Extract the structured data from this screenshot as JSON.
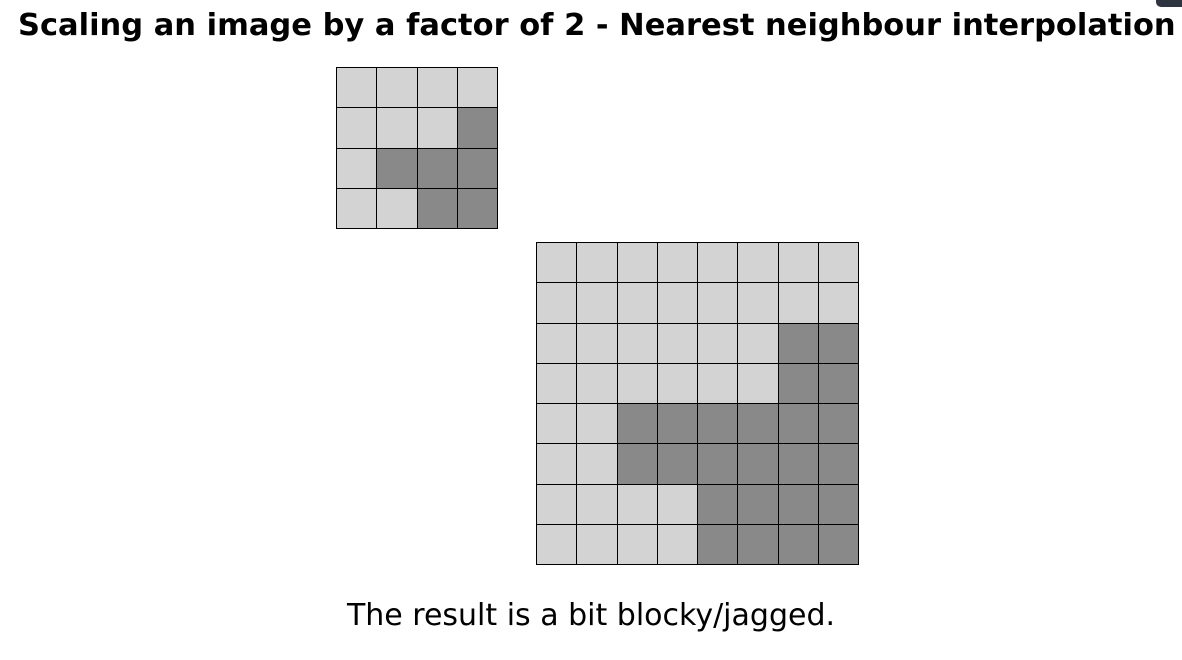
{
  "slide": {
    "title": "Scaling an image by a factor of 2 - Nearest neighbour interpolation",
    "caption": "The result is a bit blocky/jagged."
  },
  "colors": {
    "light_pixel": "#d3d3d3",
    "dark_pixel": "#898989",
    "grid_line": "#000000",
    "corner_tab": "#2e3440"
  },
  "original_image": {
    "rows": 4,
    "cols": 4,
    "pixels": [
      [
        0,
        0,
        0,
        0
      ],
      [
        0,
        0,
        0,
        1
      ],
      [
        0,
        1,
        1,
        1
      ],
      [
        0,
        0,
        1,
        1
      ]
    ]
  },
  "scaled_image": {
    "rows": 8,
    "cols": 8,
    "pixels": [
      [
        0,
        0,
        0,
        0,
        0,
        0,
        0,
        0
      ],
      [
        0,
        0,
        0,
        0,
        0,
        0,
        0,
        0
      ],
      [
        0,
        0,
        0,
        0,
        0,
        0,
        1,
        1
      ],
      [
        0,
        0,
        0,
        0,
        0,
        0,
        1,
        1
      ],
      [
        0,
        0,
        1,
        1,
        1,
        1,
        1,
        1
      ],
      [
        0,
        0,
        1,
        1,
        1,
        1,
        1,
        1
      ],
      [
        0,
        0,
        0,
        0,
        1,
        1,
        1,
        1
      ],
      [
        0,
        0,
        0,
        0,
        1,
        1,
        1,
        1
      ]
    ]
  }
}
